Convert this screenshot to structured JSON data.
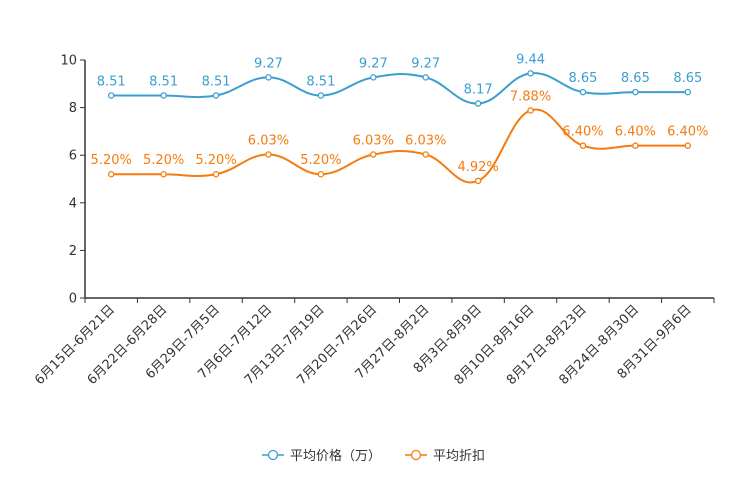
{
  "chart_data": {
    "type": "line",
    "title": "",
    "xlabel": "",
    "ylabel": "",
    "ylim": [
      0,
      10
    ],
    "yticks": [
      0,
      2,
      4,
      6,
      8,
      10
    ],
    "grid": false,
    "legend_position": "bottom-center",
    "categories": [
      "6月15日-6月21日",
      "6月22日-6月28日",
      "6月29日-7月5日",
      "7月6日-7月12日",
      "7月13日-7月19日",
      "7月20日-7月26日",
      "7月27日-8月2日",
      "8月3日-8月9日",
      "8月10日-8月16日",
      "8月17日-8月23日",
      "8月24日-8月30日",
      "8月31日-9月6日"
    ],
    "series": [
      {
        "name": "平均价格（万）",
        "color": "#3a9fd0",
        "values": [
          8.51,
          8.51,
          8.51,
          9.27,
          8.51,
          9.27,
          9.27,
          8.17,
          9.44,
          8.65,
          8.65,
          8.65
        ],
        "labels": [
          "8.51",
          "8.51",
          "8.51",
          "9.27",
          "8.51",
          "9.27",
          "9.27",
          "8.17",
          "9.44",
          "8.65",
          "8.65",
          "8.65"
        ]
      },
      {
        "name": "平均折扣",
        "color": "#f57c0f",
        "values": [
          5.2,
          5.2,
          5.2,
          6.03,
          5.2,
          6.03,
          6.03,
          4.92,
          7.88,
          6.4,
          6.4,
          6.4
        ],
        "labels": [
          "5.20%",
          "5.20%",
          "5.20%",
          "6.03%",
          "5.20%",
          "6.03%",
          "6.03%",
          "4.92%",
          "7.88%",
          "6.40%",
          "6.40%",
          "6.40%"
        ]
      }
    ]
  }
}
